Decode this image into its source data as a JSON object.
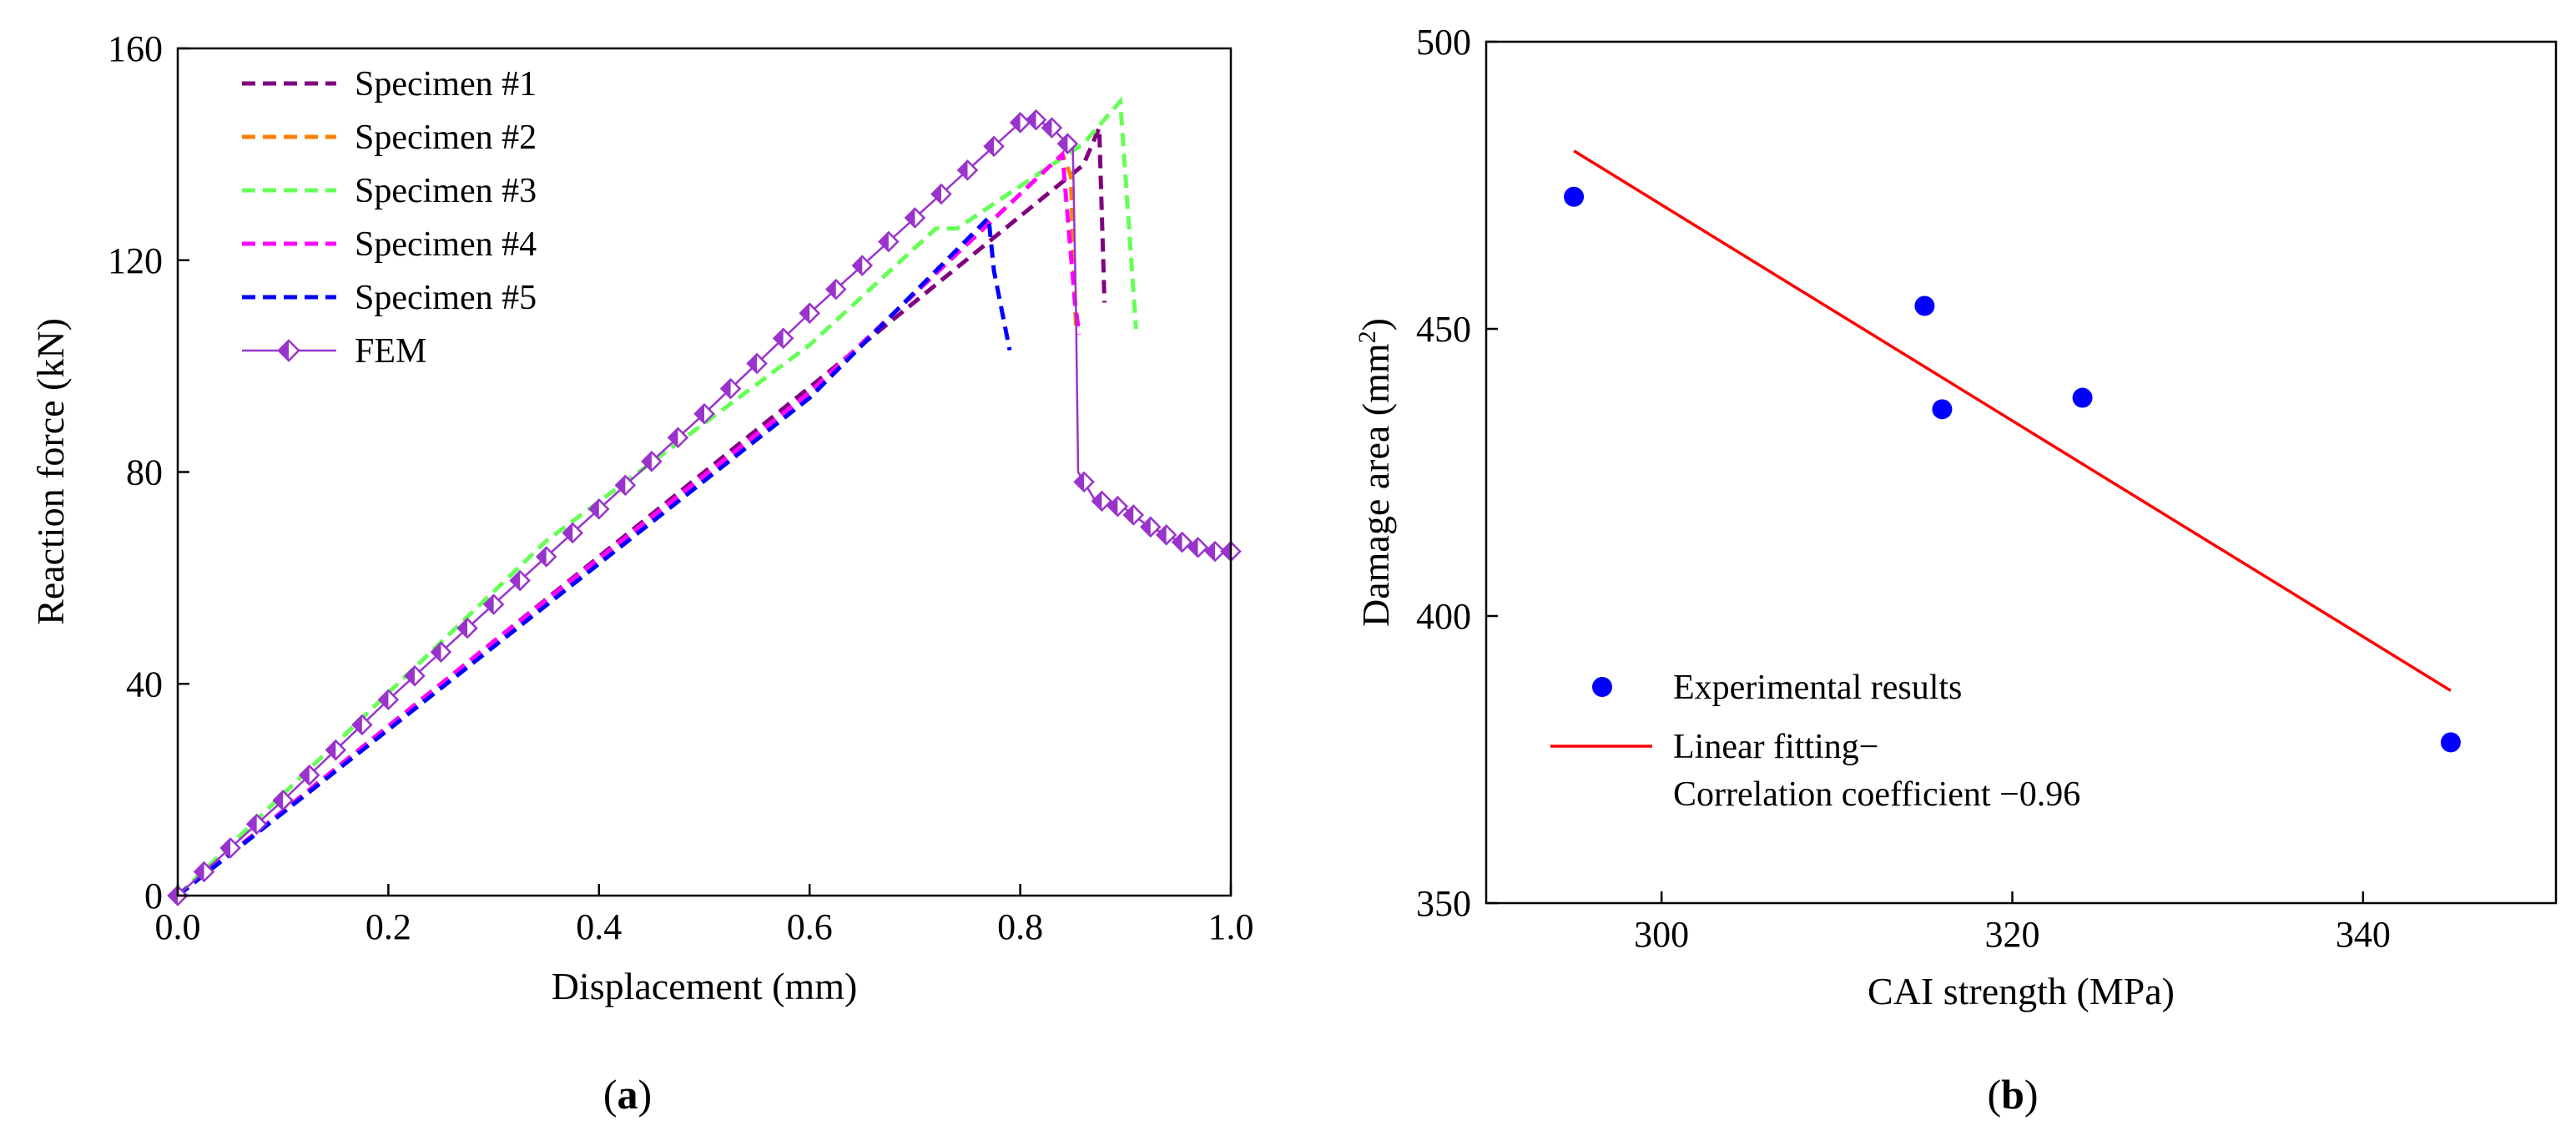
{
  "chart_data": [
    {
      "type": "line",
      "panel_label": "a",
      "xlabel": "Displacement (mm)",
      "ylabel": "Reaction force (kN)",
      "xlim": [
        0,
        1.0
      ],
      "ylim": [
        0,
        160
      ],
      "xticks": [
        0.0,
        0.2,
        0.4,
        0.6,
        0.8,
        1.0
      ],
      "xtick_labels": [
        "0.0",
        "0.2",
        "0.4",
        "0.6",
        "0.8",
        "1.0"
      ],
      "yticks": [
        0,
        40,
        80,
        120,
        160
      ],
      "ytick_labels": [
        "0",
        "40",
        "80",
        "120",
        "160"
      ],
      "legend_position": "top-left",
      "series": [
        {
          "name": "Specimen #1",
          "color": "#800080",
          "style": "dashed",
          "x": [
            0,
            0.3,
            0.6,
            0.86,
            0.875,
            0.88
          ],
          "y": [
            0,
            48,
            96,
            138,
            145,
            112
          ]
        },
        {
          "name": "Specimen #2",
          "color": "#FF8000",
          "style": "dashed",
          "x": [
            0,
            0.3,
            0.6,
            0.84,
            0.848,
            0.853
          ],
          "y": [
            0,
            48,
            95,
            140,
            136,
            107
          ]
        },
        {
          "name": "Specimen #3",
          "color": "#66FF55",
          "style": "dashed",
          "x": [
            0,
            0.35,
            0.6,
            0.72,
            0.74,
            0.86,
            0.895,
            0.91
          ],
          "y": [
            0,
            67,
            104,
            126,
            126,
            142,
            150,
            107
          ]
        },
        {
          "name": "Specimen #4",
          "color": "#FF00FF",
          "style": "dashed",
          "x": [
            0,
            0.3,
            0.6,
            0.84,
            0.852,
            0.856
          ],
          "y": [
            0,
            48,
            95,
            140,
            112,
            106
          ]
        },
        {
          "name": "Specimen #5",
          "color": "#0000FF",
          "style": "dashed",
          "x": [
            0,
            0.3,
            0.6,
            0.77,
            0.775,
            0.79
          ],
          "y": [
            0,
            47,
            94,
            128,
            118,
            103
          ]
        },
        {
          "name": "FEM",
          "color": "#9933CC",
          "style": "solid-diamond",
          "x": [
            0,
            0.1,
            0.2,
            0.3,
            0.4,
            0.5,
            0.6,
            0.7,
            0.8,
            0.81,
            0.83,
            0.85,
            0.853,
            0.855,
            0.87,
            0.9,
            0.92,
            0.95,
            0.98,
            1.0
          ],
          "y": [
            0,
            18,
            37,
            55,
            73,
            91,
            110,
            128,
            146,
            147,
            145,
            141,
            110,
            80,
            75,
            73,
            70,
            67,
            65,
            65
          ]
        }
      ]
    },
    {
      "type": "scatter",
      "panel_label": "b",
      "xlabel": "CAI strength (MPa)",
      "ylabel": "Damage area (mm",
      "ylabel_sup": "2",
      "ylabel_end": ")",
      "xlim": [
        290,
        351
      ],
      "ylim": [
        350,
        500
      ],
      "xticks": [
        300,
        320,
        340
      ],
      "xtick_labels": [
        "300",
        "320",
        "340"
      ],
      "yticks": [
        350,
        400,
        450,
        500
      ],
      "ytick_labels": [
        "350",
        "400",
        "450",
        "500"
      ],
      "legend_position": "bottom-left",
      "series": [
        {
          "name": "Experimental results",
          "color": "#0000FF",
          "style": "markers",
          "x": [
            295,
            315,
            316,
            324,
            345
          ],
          "y": [
            473,
            454,
            436,
            438,
            378
          ]
        },
        {
          "name": "Linear fitting−",
          "color": "#FF0000",
          "style": "line",
          "x": [
            295,
            345
          ],
          "y": [
            481,
            387
          ]
        }
      ],
      "annotation": "Correlation coefficient −0.96"
    }
  ]
}
